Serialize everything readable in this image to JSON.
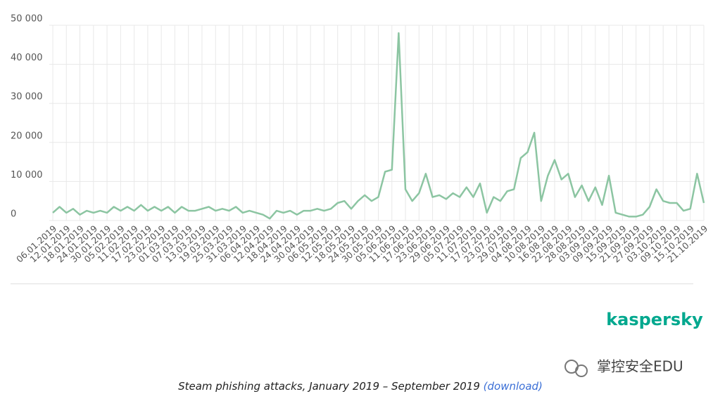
{
  "chart_data": {
    "type": "line",
    "categories": [
      "06.01.2019",
      null,
      "12.01.2019",
      null,
      "18.01.2019",
      null,
      "24.01.2019",
      null,
      "30.01.2019",
      null,
      "05.02.2019",
      null,
      "11.02.2019",
      null,
      "17.02.2019",
      null,
      "23.02.2019",
      null,
      "01.03.2019",
      null,
      "07.03.2019",
      null,
      "13.03.2019",
      null,
      "19.03.2019",
      null,
      "25.03.2019",
      null,
      "31.03.2019",
      null,
      "06.04.2019",
      null,
      "12.04.2019",
      null,
      "18.04.2019",
      null,
      "24.04.2019",
      null,
      "30.04.2019",
      null,
      "06.05.2019",
      null,
      "12.05.2019",
      null,
      "18.05.2019",
      null,
      "24.05.2019",
      null,
      "30.05.2019",
      null,
      "05.06.2019",
      null,
      "11.06.2019",
      null,
      "17.06.2019",
      null,
      "23.06.2019",
      null,
      "29.06.2019",
      null,
      "05.07.2019",
      null,
      "11.07.2019",
      null,
      "17.07.2019",
      null,
      "23.07.2019",
      null,
      "29.07.2019",
      null,
      "04.08.2019",
      null,
      "10.08.2019",
      null,
      "16.08.2019",
      null,
      "22.08.2019",
      null,
      "28.08.2019",
      null,
      "03.09.2019",
      null,
      "09.09.2019",
      null,
      "15.09.2019",
      null,
      "21.09.2019",
      null,
      "27.09.2019",
      null,
      "03.10.2019",
      null,
      "09.10.2019",
      null,
      "15.10.2019",
      null,
      "21.10.2019"
    ],
    "series": [
      {
        "color": "#8cc5a2",
        "values": [
          2000,
          3500,
          2000,
          3000,
          1500,
          2500,
          2000,
          2500,
          2000,
          3500,
          2500,
          3500,
          2500,
          4000,
          2500,
          3500,
          2500,
          3500,
          2000,
          3500,
          2500,
          2500,
          3000,
          3500,
          2500,
          3000,
          2500,
          3500,
          2000,
          2500,
          2000,
          1500,
          500,
          2500,
          2000,
          2500,
          1500,
          2500,
          2500,
          3000,
          2500,
          3000,
          4500,
          5000,
          3000,
          5000,
          6500,
          5000,
          6000,
          12500,
          13000,
          48000,
          8000,
          5000,
          7000,
          12000,
          6000,
          6500,
          5500,
          7000,
          6000,
          8500,
          6000,
          9500,
          2000,
          6000,
          5000,
          7500,
          8000,
          16000,
          17500,
          22500,
          5000,
          11500,
          15500,
          10500,
          12000,
          6000,
          9000,
          5000,
          8500,
          4000,
          11500,
          2000,
          1500,
          1000,
          1000,
          1500,
          3500,
          8000,
          5000,
          4500,
          4500,
          2500,
          3000,
          12000,
          4500
        ]
      }
    ],
    "ylim": [
      0,
      50000
    ],
    "yticks": [
      0,
      {
        "value": 10000,
        "label": "10 000"
      },
      {
        "value": 20000,
        "label": "20 000"
      },
      {
        "value": 30000,
        "label": "30 000"
      },
      {
        "value": 40000,
        "label": "40 000"
      },
      {
        "value": 50000,
        "label": "50 000"
      }
    ],
    "grid": true,
    "brand": "kaspersky",
    "caption": "Steam phishing attacks, January 2019 – September 2019",
    "caption_link": "(download)",
    "watermark": "掌控安全EDU"
  }
}
